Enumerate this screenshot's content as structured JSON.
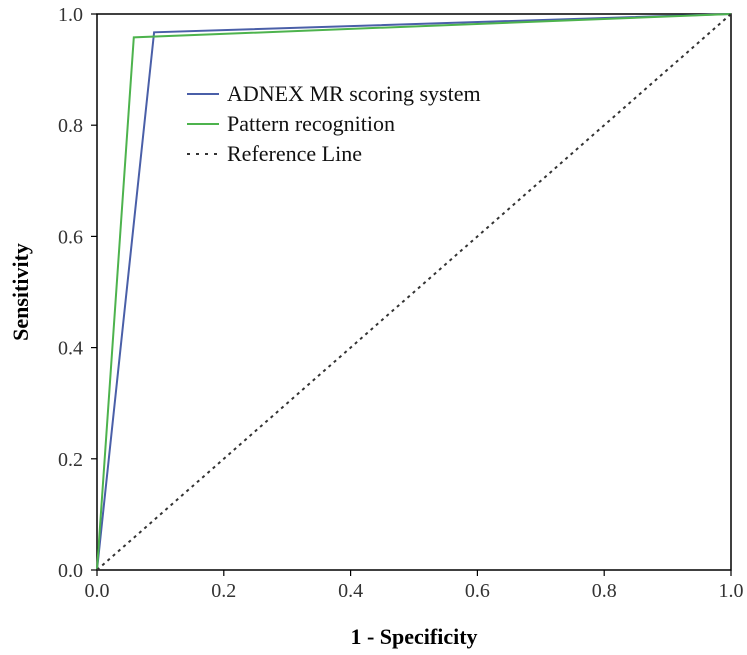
{
  "chart_data": {
    "type": "line",
    "title": "",
    "xlabel": "1 - Specificity",
    "ylabel": "Sensitivity",
    "xlim": [
      0,
      1
    ],
    "ylim": [
      0,
      1
    ],
    "xticks": [
      "0.0",
      "0.2",
      "0.4",
      "0.6",
      "0.8",
      "1.0"
    ],
    "yticks": [
      "0.0",
      "0.2",
      "0.4",
      "0.6",
      "0.8",
      "1.0"
    ],
    "grid": false,
    "legend_position": "top-left-inside",
    "series": [
      {
        "name": "ADNEX MR scoring system",
        "color": "#4a5fa8",
        "style": "solid",
        "points": [
          [
            0,
            0
          ],
          [
            0.09,
            0.967
          ],
          [
            1,
            1
          ]
        ]
      },
      {
        "name": "Pattern recognition",
        "color": "#4db34d",
        "style": "solid",
        "points": [
          [
            0,
            0
          ],
          [
            0.058,
            0.958
          ],
          [
            1,
            1
          ]
        ]
      },
      {
        "name": "Reference Line",
        "color": "#333333",
        "style": "dotted",
        "points": [
          [
            0,
            0
          ],
          [
            1,
            1
          ]
        ]
      }
    ]
  }
}
